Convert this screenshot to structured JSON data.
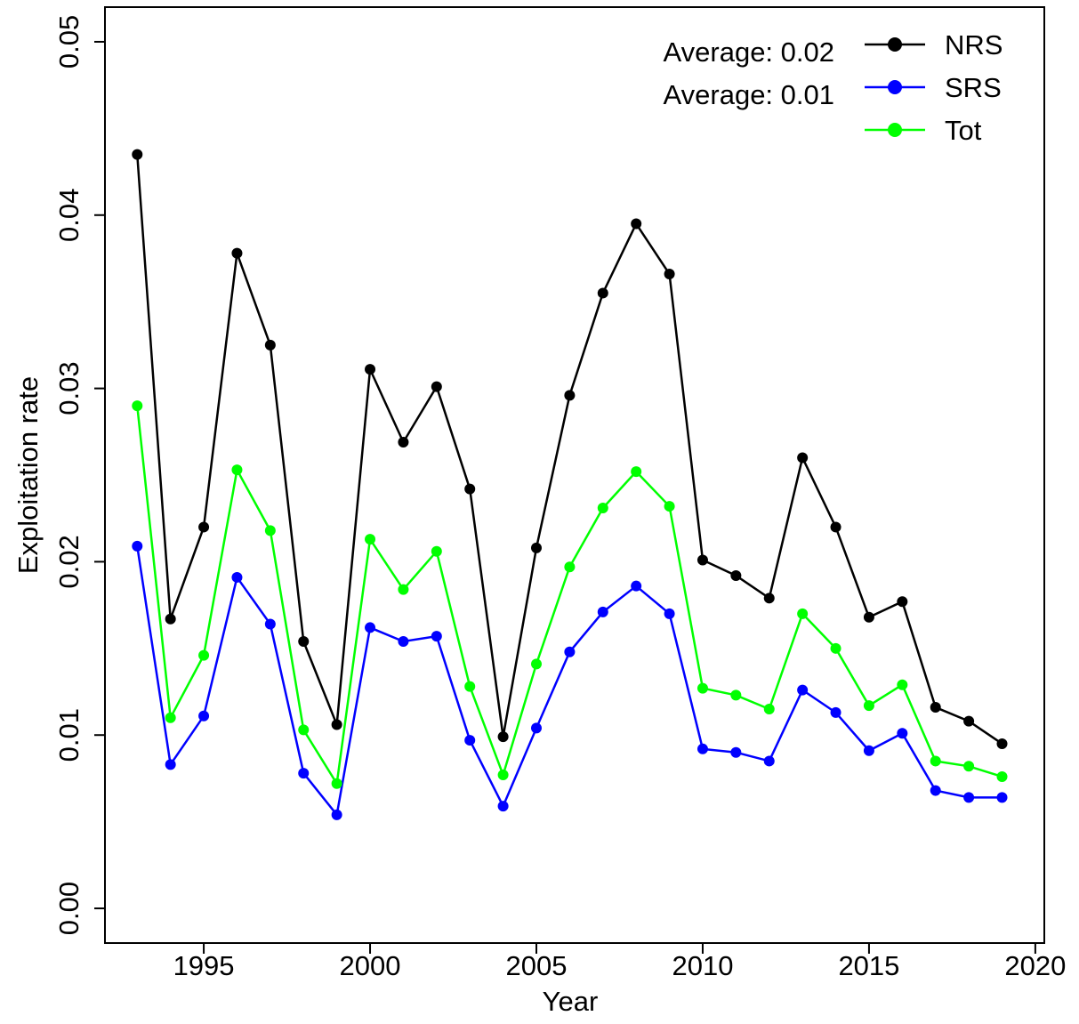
{
  "chart_data": {
    "type": "line",
    "x_label": "Year",
    "y_label": "Exploitation rate",
    "annotations": [
      "Average: 0.02",
      "Average: 0.01"
    ],
    "x": [
      1993,
      1994,
      1995,
      1996,
      1997,
      1998,
      1999,
      2000,
      2001,
      2002,
      2003,
      2004,
      2005,
      2006,
      2007,
      2008,
      2009,
      2010,
      2011,
      2012,
      2013,
      2014,
      2015,
      2016,
      2017,
      2018,
      2019
    ],
    "series": [
      {
        "name": "NRS",
        "color": "#000000",
        "values": [
          0.0435,
          0.0167,
          0.022,
          0.0378,
          0.0325,
          0.0154,
          0.0106,
          0.0311,
          0.0269,
          0.0301,
          0.0242,
          0.0099,
          0.0208,
          0.0296,
          0.0355,
          0.0395,
          0.0366,
          0.0201,
          0.0192,
          0.0179,
          0.026,
          0.022,
          0.0168,
          0.0177,
          0.0116,
          0.0108,
          0.0095
        ]
      },
      {
        "name": "SRS",
        "color": "#0000ff",
        "values": [
          0.0209,
          0.0083,
          0.0111,
          0.0191,
          0.0164,
          0.0078,
          0.0054,
          0.0162,
          0.0154,
          0.0157,
          0.0097,
          0.0059,
          0.0104,
          0.0148,
          0.0171,
          0.0186,
          0.017,
          0.0092,
          0.009,
          0.0085,
          0.0126,
          0.0113,
          0.0091,
          0.0101,
          0.0068,
          0.0064,
          0.0064
        ]
      },
      {
        "name": "Tot",
        "color": "#00ff00",
        "values": [
          0.029,
          0.011,
          0.0146,
          0.0253,
          0.0218,
          0.0103,
          0.0072,
          0.0213,
          0.0184,
          0.0206,
          0.0128,
          0.0077,
          0.0141,
          0.0197,
          0.0231,
          0.0252,
          0.0232,
          0.0127,
          0.0123,
          0.0115,
          0.017,
          0.015,
          0.0117,
          0.0129,
          0.0085,
          0.0082,
          0.0076
        ]
      }
    ],
    "xlim": [
      1992.03,
      2020.27
    ],
    "ylim": [
      -0.002,
      0.052
    ],
    "xticks": [
      1995,
      2000,
      2005,
      2010,
      2015,
      2020
    ],
    "yticks": [
      {
        "value": 0,
        "label": "0.00"
      },
      {
        "value": 0.01,
        "label": "0.01"
      },
      {
        "value": 0.02,
        "label": "0.02"
      },
      {
        "value": 0.03,
        "label": "0.03"
      },
      {
        "value": 0.04,
        "label": "0.04"
      },
      {
        "value": 0.05,
        "label": "0.05"
      }
    ],
    "legend": "top-right"
  }
}
